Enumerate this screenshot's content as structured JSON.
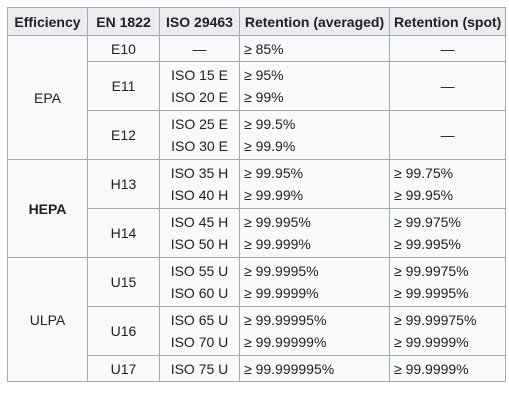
{
  "table": {
    "headers": [
      "Efficiency",
      "EN 1822",
      "ISO 29463",
      "Retention (averaged)",
      "Retention (spot)"
    ],
    "groups": [
      {
        "efficiency": "EPA",
        "rows": [
          {
            "en1822": "E10",
            "iso": [
              "—"
            ],
            "averaged": [
              "≥ 85%"
            ],
            "spot": [
              "—"
            ]
          },
          {
            "en1822": "E11",
            "iso": [
              "ISO 15 E",
              "ISO 20 E"
            ],
            "averaged": [
              "≥ 95%",
              "≥ 99%"
            ],
            "spot": [
              "—"
            ]
          },
          {
            "en1822": "E12",
            "iso": [
              "ISO 25 E",
              "ISO 30 E"
            ],
            "averaged": [
              "≥ 99.5%",
              "≥ 99.9%"
            ],
            "spot": [
              "—"
            ]
          }
        ]
      },
      {
        "efficiency": "HEPA",
        "rows": [
          {
            "en1822": "H13",
            "iso": [
              "ISO 35 H",
              "ISO 40 H"
            ],
            "averaged": [
              "≥ 99.95%",
              "≥ 99.99%"
            ],
            "spot": [
              "≥ 99.75%",
              "≥ 99.95%"
            ]
          },
          {
            "en1822": "H14",
            "iso": [
              "ISO 45 H",
              "ISO 50 H"
            ],
            "averaged": [
              "≥ 99.995%",
              "≥ 99.999%"
            ],
            "spot": [
              "≥ 99.975%",
              "≥ 99.995%"
            ]
          }
        ]
      },
      {
        "efficiency": "ULPA",
        "rows": [
          {
            "en1822": "U15",
            "iso": [
              "ISO 55 U",
              "ISO 60 U"
            ],
            "averaged": [
              "≥ 99.9995%",
              "≥ 99.9999%"
            ],
            "spot": [
              "≥ 99.9975%",
              "≥ 99.9995%"
            ]
          },
          {
            "en1822": "U16",
            "iso": [
              "ISO 65 U",
              "ISO 70 U"
            ],
            "averaged": [
              "≥ 99.99995%",
              "≥ 99.99999%"
            ],
            "spot": [
              "≥ 99.99975%",
              "≥ 99.9999%"
            ]
          },
          {
            "en1822": "U17",
            "iso": [
              "ISO 75 U"
            ],
            "averaged": [
              "≥ 99.999995%"
            ],
            "spot": [
              "≥ 99.9999%"
            ]
          }
        ]
      }
    ]
  }
}
